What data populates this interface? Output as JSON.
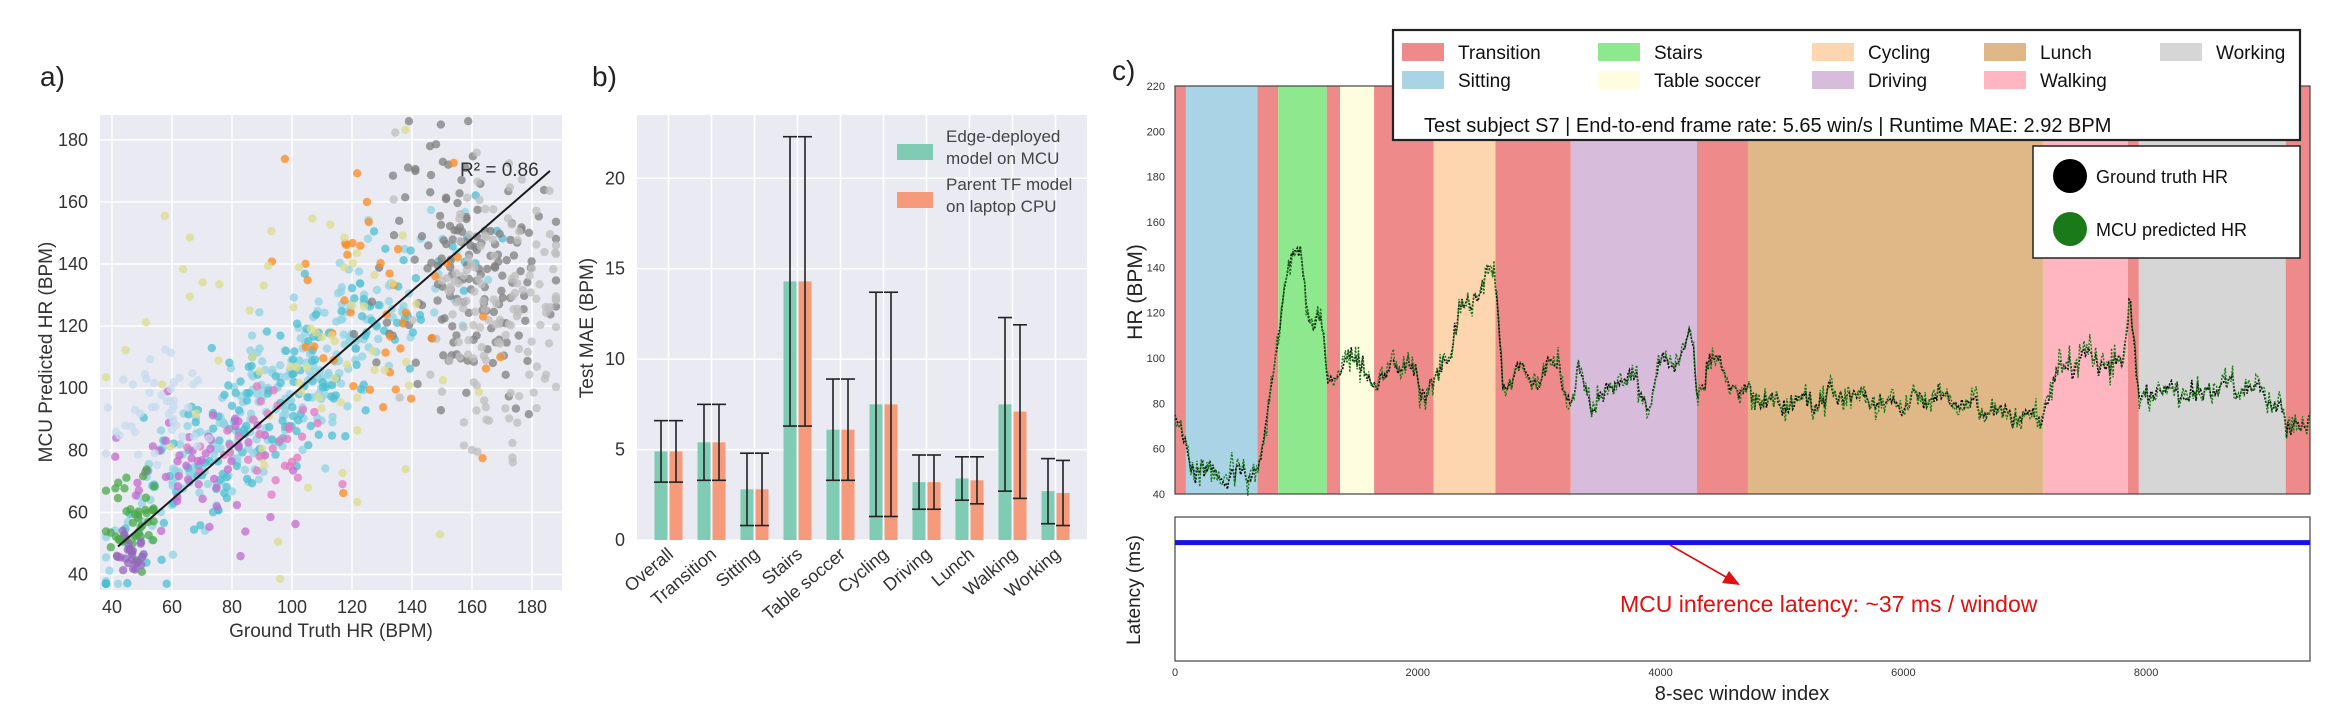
{
  "panel_labels": {
    "a": "a)",
    "b": "b)",
    "c": "c)"
  },
  "colors": {
    "transition": "#ef8a8a",
    "sitting": "#a9d4e6",
    "stairs": "#8ee88e",
    "table_soccer": "#fffde0",
    "cycling": "#fdd6b0",
    "driving": "#d8bcdc",
    "lunch": "#e0b888",
    "walking": "#ffb6c1",
    "working": "#d6d6d6",
    "mcu_bar": "#7fcbb3",
    "tf_bar": "#f59a7a",
    "gt_hr": "#000000",
    "mcu_hr": "#1a7a1a",
    "latency": "#1414e6",
    "annotation": "#e01010"
  },
  "chart_data": [
    {
      "type": "scatter",
      "panel": "a",
      "xlabel": "Ground Truth HR (BPM)",
      "ylabel": "MCU Predicted HR (BPM)",
      "xlim": [
        36,
        190
      ],
      "ylim": [
        35,
        188
      ],
      "xticks": [
        40,
        60,
        80,
        100,
        120,
        140,
        160,
        180
      ],
      "yticks": [
        40,
        60,
        80,
        100,
        120,
        140,
        160,
        180
      ],
      "annotation": "R² = 0.86",
      "fit_line": {
        "x": [
          42,
          186
        ],
        "y": [
          49,
          170
        ]
      },
      "clusters": [
        {
          "color": "#8fd3e3",
          "cx": 95,
          "cy": 95,
          "sx": 28,
          "sy": 22,
          "n": 260
        },
        {
          "color": "#4bbfd1",
          "cx": 95,
          "cy": 100,
          "sx": 30,
          "sy": 24,
          "n": 180
        },
        {
          "color": "#7f7f7f",
          "cx": 158,
          "cy": 135,
          "sx": 14,
          "sy": 22,
          "n": 160
        },
        {
          "color": "#bdbdbd",
          "cx": 168,
          "cy": 125,
          "sx": 12,
          "sy": 25,
          "n": 140
        },
        {
          "color": "#ff8a1e",
          "cx": 130,
          "cy": 130,
          "sx": 20,
          "sy": 22,
          "n": 45
        },
        {
          "color": "#dcdc8c",
          "cx": 110,
          "cy": 105,
          "sx": 30,
          "sy": 25,
          "n": 70
        },
        {
          "color": "#c36ad0",
          "cx": 72,
          "cy": 75,
          "sx": 14,
          "sy": 10,
          "n": 55
        },
        {
          "color": "#e377c2",
          "cx": 92,
          "cy": 82,
          "sx": 12,
          "sy": 10,
          "n": 35
        },
        {
          "color": "#4aa84a",
          "cx": 47,
          "cy": 58,
          "sx": 5,
          "sy": 7,
          "n": 45
        },
        {
          "color": "#9467bd",
          "cx": 45,
          "cy": 47,
          "sx": 3,
          "sy": 3,
          "n": 25
        },
        {
          "color": "#c6dbef",
          "cx": 55,
          "cy": 95,
          "sx": 8,
          "sy": 8,
          "n": 45
        }
      ]
    },
    {
      "type": "bar",
      "panel": "b",
      "ylabel": "Test MAE (BPM)",
      "ylim": [
        0,
        23.5
      ],
      "yticks": [
        0,
        5,
        10,
        15,
        20
      ],
      "categories": [
        "Overall",
        "Transition",
        "Sitting",
        "Stairs",
        "Table soccer",
        "Cycling",
        "Driving",
        "Lunch",
        "Walking",
        "Working"
      ],
      "series": [
        {
          "name": "Edge-deployed model on MCU",
          "values": [
            4.9,
            5.4,
            2.8,
            14.3,
            6.1,
            7.5,
            3.2,
            3.4,
            7.5,
            2.7
          ],
          "errors": [
            1.7,
            2.1,
            2.0,
            8.0,
            2.8,
            6.2,
            1.5,
            1.2,
            4.8,
            1.8
          ]
        },
        {
          "name": "Parent TF model on laptop CPU",
          "values": [
            4.9,
            5.4,
            2.8,
            14.3,
            6.1,
            7.5,
            3.2,
            3.3,
            7.1,
            2.6
          ],
          "errors": [
            1.7,
            2.1,
            2.0,
            8.0,
            2.8,
            6.2,
            1.5,
            1.3,
            4.8,
            1.8
          ]
        }
      ],
      "legend": [
        "Edge-deployed model on MCU",
        "Parent TF model on laptop CPU"
      ]
    },
    {
      "type": "line",
      "panel": "c-top",
      "ylabel": "HR (BPM)",
      "xlim": [
        0,
        9350
      ],
      "ylim": [
        40,
        220
      ],
      "yticks": [
        40,
        60,
        80,
        100,
        120,
        140,
        160,
        180,
        200,
        220
      ],
      "info_text": "Test subject S7 | End-to-end frame rate:  5.65 win/s | Runtime MAE:   2.92 BPM",
      "activity_legend": [
        {
          "label": "Transition",
          "key": "transition"
        },
        {
          "label": "Sitting",
          "key": "sitting"
        },
        {
          "label": "Stairs",
          "key": "stairs"
        },
        {
          "label": "Table soccer",
          "key": "table_soccer"
        },
        {
          "label": "Cycling",
          "key": "cycling"
        },
        {
          "label": "Driving",
          "key": "driving"
        },
        {
          "label": "Lunch",
          "key": "lunch"
        },
        {
          "label": "Walking",
          "key": "walking"
        },
        {
          "label": "Working",
          "key": "working"
        }
      ],
      "series_legend": [
        "Ground truth HR",
        "MCU predicted HR"
      ],
      "segments": [
        {
          "start": 0,
          "end": 90,
          "key": "transition"
        },
        {
          "start": 90,
          "end": 680,
          "key": "sitting"
        },
        {
          "start": 680,
          "end": 850,
          "key": "transition"
        },
        {
          "start": 850,
          "end": 1250,
          "key": "stairs"
        },
        {
          "start": 1250,
          "end": 1360,
          "key": "transition"
        },
        {
          "start": 1360,
          "end": 1640,
          "key": "table_soccer"
        },
        {
          "start": 1640,
          "end": 2130,
          "key": "transition"
        },
        {
          "start": 2130,
          "end": 2640,
          "key": "cycling"
        },
        {
          "start": 2640,
          "end": 3260,
          "key": "transition"
        },
        {
          "start": 3260,
          "end": 4300,
          "key": "driving"
        },
        {
          "start": 4300,
          "end": 4720,
          "key": "transition"
        },
        {
          "start": 4720,
          "end": 7150,
          "key": "lunch"
        },
        {
          "start": 7150,
          "end": 7850,
          "key": "walking"
        },
        {
          "start": 7850,
          "end": 7940,
          "key": "transition"
        },
        {
          "start": 7940,
          "end": 9150,
          "key": "working"
        },
        {
          "start": 9150,
          "end": 9350,
          "key": "transition"
        }
      ],
      "hr_anchors": [
        [
          0,
          73
        ],
        [
          60,
          65
        ],
        [
          120,
          55
        ],
        [
          250,
          50
        ],
        [
          500,
          48
        ],
        [
          680,
          50
        ],
        [
          750,
          68
        ],
        [
          840,
          105
        ],
        [
          900,
          132
        ],
        [
          960,
          145
        ],
        [
          1050,
          143
        ],
        [
          1100,
          118
        ],
        [
          1200,
          115
        ],
        [
          1260,
          88
        ],
        [
          1400,
          98
        ],
        [
          1550,
          100
        ],
        [
          1640,
          86
        ],
        [
          1720,
          90
        ],
        [
          1800,
          100
        ],
        [
          1880,
          94
        ],
        [
          1980,
          96
        ],
        [
          2050,
          84
        ],
        [
          2130,
          88
        ],
        [
          2250,
          100
        ],
        [
          2350,
          120
        ],
        [
          2450,
          125
        ],
        [
          2520,
          132
        ],
        [
          2600,
          140
        ],
        [
          2650,
          128
        ],
        [
          2700,
          88
        ],
        [
          2850,
          94
        ],
        [
          3000,
          90
        ],
        [
          3150,
          98
        ],
        [
          3260,
          78
        ],
        [
          3320,
          92
        ],
        [
          3450,
          80
        ],
        [
          3600,
          88
        ],
        [
          3750,
          92
        ],
        [
          3900,
          80
        ],
        [
          4000,
          96
        ],
        [
          4150,
          100
        ],
        [
          4250,
          110
        ],
        [
          4300,
          84
        ],
        [
          4400,
          100
        ],
        [
          4550,
          92
        ],
        [
          4720,
          84
        ],
        [
          5000,
          80
        ],
        [
          5300,
          82
        ],
        [
          5600,
          84
        ],
        [
          5900,
          80
        ],
        [
          6300,
          82
        ],
        [
          6700,
          78
        ],
        [
          7000,
          74
        ],
        [
          7150,
          76
        ],
        [
          7300,
          96
        ],
        [
          7500,
          100
        ],
        [
          7700,
          96
        ],
        [
          7800,
          100
        ],
        [
          7870,
          128
        ],
        [
          7940,
          80
        ],
        [
          8100,
          86
        ],
        [
          8400,
          84
        ],
        [
          8700,
          88
        ],
        [
          9000,
          84
        ],
        [
          9150,
          70
        ],
        [
          9350,
          72
        ]
      ]
    },
    {
      "type": "line",
      "panel": "c-bottom",
      "ylabel": "Latency (ms)",
      "xlabel": "8-sec window index",
      "xlim": [
        0,
        9350
      ],
      "xticks": [
        0,
        2000,
        4000,
        6000,
        8000
      ],
      "ylim": [
        0,
        45
      ],
      "latency_ms": 37,
      "annotation": "MCU inference latency: ~37 ms  / window"
    }
  ]
}
